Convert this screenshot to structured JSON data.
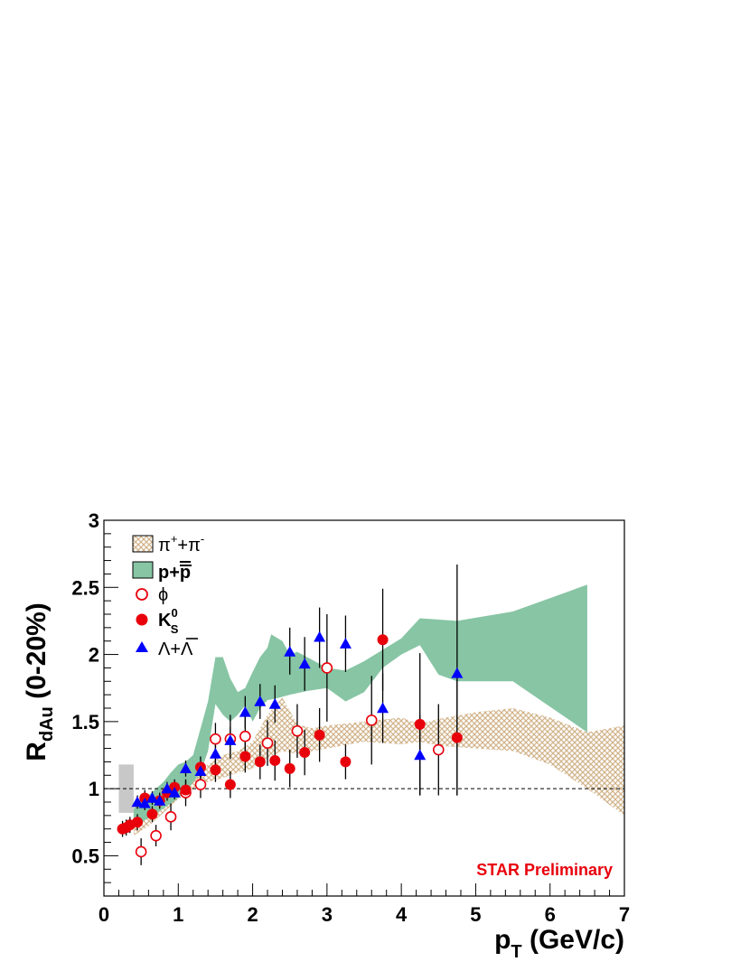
{
  "chart_data": {
    "type": "scatter",
    "xlabel": "p",
    "xlabel_sub": "T",
    "xlabel_unit": " (GeV/c)",
    "ylabel": "R",
    "ylabel_sub": "dAu",
    "ylabel_suffix": " (0-20%)",
    "xlim": [
      0,
      7
    ],
    "ylim": [
      0.2,
      3
    ],
    "x_ticks": [
      0,
      1,
      2,
      3,
      4,
      5,
      6,
      7
    ],
    "x_tick_labels": [
      "0",
      "1",
      "2",
      "3",
      "4",
      "5",
      "6",
      "7"
    ],
    "y_ticks": [
      0.5,
      1,
      1.5,
      2,
      2.5,
      3
    ],
    "y_tick_labels": [
      "0.5",
      "1",
      "1.5",
      "2",
      "2.5",
      "3"
    ],
    "reference_line": 1,
    "annotation": {
      "text": "STAR Preliminary",
      "color": "#e8000b"
    },
    "normalization_box": {
      "x": [
        0.2,
        0.4
      ],
      "y": [
        0.82,
        1.18
      ],
      "color": "#c8c8c8"
    },
    "legend": [
      {
        "key": "pion",
        "main": "π",
        "sup1": "+",
        "plus": "+π",
        "sup2": "-"
      },
      {
        "key": "proton",
        "text": "p+",
        "bar": "p"
      },
      {
        "key": "phi",
        "text": "ϕ"
      },
      {
        "key": "kshort",
        "main": "K",
        "sup": "0",
        "sub": "S"
      },
      {
        "key": "lambda",
        "text": "Λ+",
        "bar": "Λ"
      }
    ],
    "bands": [
      {
        "name": "pi+ + pi-",
        "color": "#d2b48c",
        "pattern": "crosshatch",
        "upper": [
          [
            0.4,
            0.9
          ],
          [
            0.6,
            0.95
          ],
          [
            0.8,
            1.0
          ],
          [
            1.0,
            1.08
          ],
          [
            1.2,
            1.13
          ],
          [
            1.4,
            1.18
          ],
          [
            1.6,
            1.25
          ],
          [
            1.8,
            1.28
          ],
          [
            2.0,
            1.35
          ],
          [
            2.2,
            1.55
          ],
          [
            2.4,
            1.68
          ],
          [
            2.6,
            1.48
          ],
          [
            2.8,
            1.45
          ],
          [
            3.0,
            1.47
          ],
          [
            3.5,
            1.5
          ],
          [
            4.0,
            1.53
          ],
          [
            4.25,
            1.48
          ],
          [
            4.5,
            1.52
          ],
          [
            5.0,
            1.57
          ],
          [
            5.5,
            1.6
          ],
          [
            6.0,
            1.53
          ],
          [
            6.5,
            1.42
          ],
          [
            7.0,
            1.47
          ]
        ],
        "lower": [
          [
            7.0,
            0.8
          ],
          [
            6.5,
            1.0
          ],
          [
            6.0,
            1.18
          ],
          [
            5.5,
            1.28
          ],
          [
            5.0,
            1.3
          ],
          [
            4.5,
            1.32
          ],
          [
            4.25,
            1.35
          ],
          [
            4.0,
            1.33
          ],
          [
            3.5,
            1.35
          ],
          [
            3.0,
            1.3
          ],
          [
            2.6,
            1.26
          ],
          [
            2.4,
            1.28
          ],
          [
            2.2,
            1.23
          ],
          [
            2.0,
            1.15
          ],
          [
            1.8,
            1.12
          ],
          [
            1.6,
            1.08
          ],
          [
            1.4,
            1.05
          ],
          [
            1.2,
            1.0
          ],
          [
            1.0,
            0.92
          ],
          [
            0.8,
            0.82
          ],
          [
            0.6,
            0.72
          ],
          [
            0.4,
            0.65
          ]
        ]
      },
      {
        "name": "p + pbar",
        "color": "#87c5a4",
        "pattern": "solid",
        "upper": [
          [
            0.4,
            0.85
          ],
          [
            0.6,
            0.95
          ],
          [
            0.8,
            1.05
          ],
          [
            0.9,
            1.12
          ],
          [
            1.0,
            1.18
          ],
          [
            1.1,
            1.2
          ],
          [
            1.2,
            1.25
          ],
          [
            1.3,
            1.45
          ],
          [
            1.4,
            1.65
          ],
          [
            1.5,
            1.98
          ],
          [
            1.6,
            1.98
          ],
          [
            1.7,
            1.82
          ],
          [
            1.8,
            1.72
          ],
          [
            1.9,
            1.75
          ],
          [
            2.0,
            1.87
          ],
          [
            2.1,
            1.98
          ],
          [
            2.2,
            2.05
          ],
          [
            2.25,
            2.15
          ],
          [
            2.4,
            2.1
          ],
          [
            2.5,
            2.0
          ],
          [
            2.6,
            2.02
          ],
          [
            3.0,
            1.9
          ],
          [
            3.25,
            1.88
          ],
          [
            3.5,
            1.95
          ],
          [
            4.0,
            2.12
          ],
          [
            4.25,
            2.27
          ],
          [
            4.75,
            2.25
          ],
          [
            5.5,
            2.32
          ],
          [
            6.5,
            2.52
          ]
        ],
        "lower": [
          [
            6.5,
            1.42
          ],
          [
            5.5,
            1.8
          ],
          [
            5.0,
            1.8
          ],
          [
            4.75,
            1.8
          ],
          [
            4.5,
            1.85
          ],
          [
            4.25,
            2.07
          ],
          [
            4.0,
            2.0
          ],
          [
            3.75,
            1.9
          ],
          [
            3.5,
            1.72
          ],
          [
            3.25,
            1.65
          ],
          [
            3.0,
            1.75
          ],
          [
            2.75,
            1.73
          ],
          [
            2.5,
            1.7
          ],
          [
            2.3,
            1.67
          ],
          [
            2.2,
            1.66
          ],
          [
            2.1,
            1.6
          ],
          [
            2.0,
            1.5
          ],
          [
            1.9,
            1.62
          ],
          [
            1.8,
            1.55
          ],
          [
            1.7,
            1.5
          ],
          [
            1.6,
            1.55
          ],
          [
            1.5,
            1.63
          ],
          [
            1.4,
            1.28
          ],
          [
            1.3,
            1.12
          ],
          [
            1.2,
            1.05
          ],
          [
            1.1,
            0.97
          ],
          [
            1.0,
            0.93
          ],
          [
            0.8,
            0.85
          ],
          [
            0.6,
            0.78
          ],
          [
            0.4,
            0.72
          ]
        ]
      }
    ],
    "series": [
      {
        "name": "phi",
        "marker": "open-circle",
        "color": "#e8000b",
        "points": [
          {
            "x": 0.5,
            "y": 0.53,
            "lo": 0.43,
            "hi": 0.63
          },
          {
            "x": 0.7,
            "y": 0.65,
            "lo": 0.57,
            "hi": 0.73
          },
          {
            "x": 0.9,
            "y": 0.79,
            "lo": 0.69,
            "hi": 0.89
          },
          {
            "x": 1.1,
            "y": 0.97,
            "lo": 0.87,
            "hi": 1.07
          },
          {
            "x": 1.3,
            "y": 1.03,
            "lo": 0.93,
            "hi": 1.13
          },
          {
            "x": 1.5,
            "y": 1.37,
            "lo": 1.25,
            "hi": 1.49
          },
          {
            "x": 1.7,
            "y": 1.37,
            "lo": 1.22,
            "hi": 1.55
          },
          {
            "x": 1.9,
            "y": 1.39,
            "lo": 1.22,
            "hi": 1.56
          },
          {
            "x": 2.2,
            "y": 1.34,
            "lo": 1.17,
            "hi": 1.51
          },
          {
            "x": 2.6,
            "y": 1.43,
            "lo": 1.23,
            "hi": 1.63
          },
          {
            "x": 3.0,
            "y": 1.9,
            "lo": 1.5,
            "hi": 2.3
          },
          {
            "x": 3.6,
            "y": 1.51,
            "lo": 1.18,
            "hi": 1.84
          },
          {
            "x": 4.5,
            "y": 1.29,
            "lo": 0.95,
            "hi": 1.63
          }
        ]
      },
      {
        "name": "K0S",
        "marker": "filled-circle",
        "color": "#e8000b",
        "points": [
          {
            "x": 0.25,
            "y": 0.7,
            "lo": 0.64,
            "hi": 0.76
          },
          {
            "x": 0.3,
            "y": 0.71,
            "lo": 0.65,
            "hi": 0.77
          },
          {
            "x": 0.35,
            "y": 0.73,
            "lo": 0.67,
            "hi": 0.79
          },
          {
            "x": 0.45,
            "y": 0.75,
            "lo": 0.69,
            "hi": 0.81
          },
          {
            "x": 0.55,
            "y": 0.93,
            "lo": 0.87,
            "hi": 0.99
          },
          {
            "x": 0.65,
            "y": 0.81,
            "lo": 0.75,
            "hi": 0.87
          },
          {
            "x": 0.75,
            "y": 0.91,
            "lo": 0.85,
            "hi": 0.97
          },
          {
            "x": 0.85,
            "y": 0.97,
            "lo": 0.91,
            "hi": 1.03
          },
          {
            "x": 0.95,
            "y": 1.01,
            "lo": 0.95,
            "hi": 1.07
          },
          {
            "x": 1.1,
            "y": 0.99,
            "lo": 0.92,
            "hi": 1.06
          },
          {
            "x": 1.3,
            "y": 1.16,
            "lo": 1.08,
            "hi": 1.24
          },
          {
            "x": 1.5,
            "y": 1.14,
            "lo": 1.05,
            "hi": 1.23
          },
          {
            "x": 1.7,
            "y": 1.03,
            "lo": 0.93,
            "hi": 1.13
          },
          {
            "x": 1.9,
            "y": 1.24,
            "lo": 1.12,
            "hi": 1.36
          },
          {
            "x": 2.1,
            "y": 1.2,
            "lo": 1.07,
            "hi": 1.33
          },
          {
            "x": 2.3,
            "y": 1.21,
            "lo": 1.06,
            "hi": 1.36
          },
          {
            "x": 2.5,
            "y": 1.15,
            "lo": 1.01,
            "hi": 1.29
          },
          {
            "x": 2.7,
            "y": 1.27,
            "lo": 1.1,
            "hi": 1.44
          },
          {
            "x": 2.9,
            "y": 1.4,
            "lo": 1.2,
            "hi": 1.6
          },
          {
            "x": 3.25,
            "y": 1.2,
            "lo": 1.07,
            "hi": 1.33
          },
          {
            "x": 3.75,
            "y": 2.11,
            "lo": 1.73,
            "hi": 2.49
          },
          {
            "x": 4.25,
            "y": 1.48,
            "lo": 0.95,
            "hi": 2.01
          },
          {
            "x": 4.75,
            "y": 1.38,
            "lo": 0.95,
            "hi": 1.81
          }
        ]
      },
      {
        "name": "Lambda + Lambdabar",
        "marker": "filled-triangle",
        "color": "#0000ff",
        "points": [
          {
            "x": 0.45,
            "y": 0.9,
            "lo": 0.85,
            "hi": 0.95
          },
          {
            "x": 0.55,
            "y": 0.89,
            "lo": 0.84,
            "hi": 0.94
          },
          {
            "x": 0.65,
            "y": 0.93,
            "lo": 0.88,
            "hi": 0.98
          },
          {
            "x": 0.75,
            "y": 0.91,
            "lo": 0.86,
            "hi": 0.96
          },
          {
            "x": 0.85,
            "y": 1.0,
            "lo": 0.95,
            "hi": 1.05
          },
          {
            "x": 0.95,
            "y": 0.97,
            "lo": 0.92,
            "hi": 1.02
          },
          {
            "x": 1.1,
            "y": 1.15,
            "lo": 1.09,
            "hi": 1.21
          },
          {
            "x": 1.3,
            "y": 1.13,
            "lo": 1.06,
            "hi": 1.2
          },
          {
            "x": 1.5,
            "y": 1.26,
            "lo": 1.18,
            "hi": 1.34
          },
          {
            "x": 1.7,
            "y": 1.36,
            "lo": 1.26,
            "hi": 1.46
          },
          {
            "x": 1.9,
            "y": 1.57,
            "lo": 1.45,
            "hi": 1.69
          },
          {
            "x": 2.1,
            "y": 1.65,
            "lo": 1.52,
            "hi": 1.78
          },
          {
            "x": 2.3,
            "y": 1.63,
            "lo": 1.49,
            "hi": 1.77
          },
          {
            "x": 2.5,
            "y": 2.02,
            "lo": 1.85,
            "hi": 2.2
          },
          {
            "x": 2.7,
            "y": 1.93,
            "lo": 1.73,
            "hi": 2.13
          },
          {
            "x": 2.9,
            "y": 2.13,
            "lo": 1.9,
            "hi": 2.35
          },
          {
            "x": 3.25,
            "y": 2.08,
            "lo": 1.87,
            "hi": 2.29
          },
          {
            "x": 3.75,
            "y": 1.6,
            "lo": 1.34,
            "hi": 1.86
          },
          {
            "x": 4.25,
            "y": 1.25,
            "lo": 0.95,
            "hi": 1.55
          },
          {
            "x": 4.75,
            "y": 1.86,
            "lo": 0.95,
            "hi": 2.67
          }
        ]
      }
    ]
  }
}
